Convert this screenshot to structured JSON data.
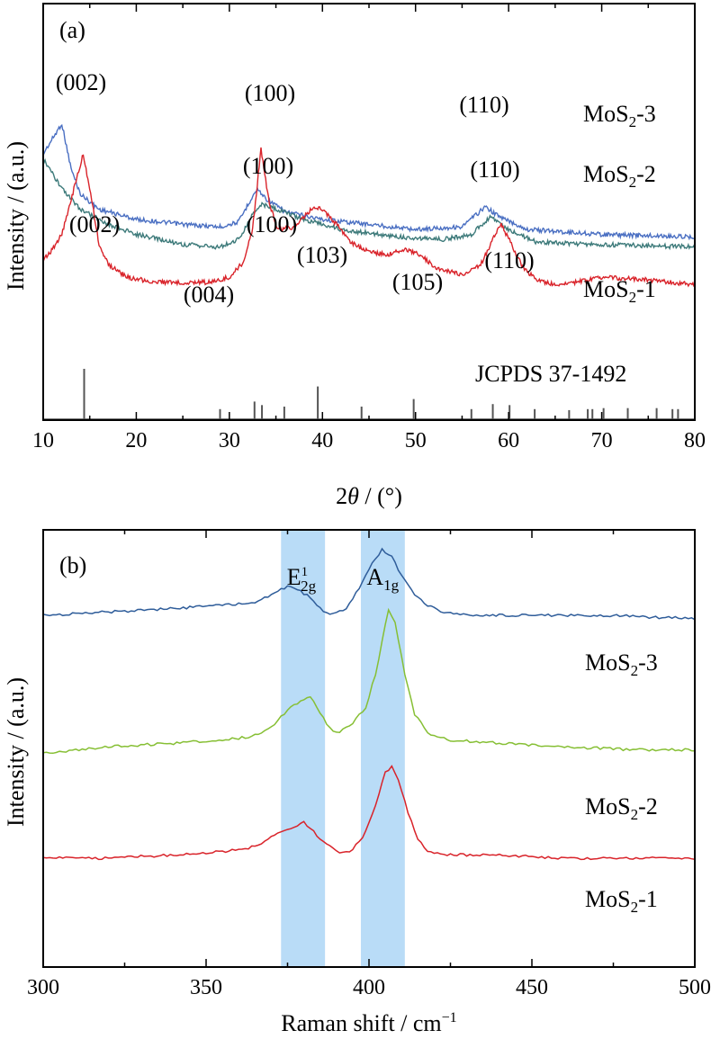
{
  "chart_data": [
    {
      "panel_label": "(a)",
      "type": "line",
      "xlabel_italic": "θ",
      "xlabel_prefix": "2",
      "xlabel_suffix": " / (°)",
      "ylabel": "Intensity / (a.u.)",
      "xlim": [
        10,
        80
      ],
      "xticks": [
        10,
        20,
        30,
        40,
        50,
        60,
        70,
        80
      ],
      "minor_step": 5,
      "y_ticks_shown": false,
      "series": [
        {
          "name": "MoS2-3",
          "name_main": "MoS",
          "name_sub": "2",
          "name_suffix": "-3",
          "color": "#4a6fc2",
          "points": [
            [
              10,
              0.8
            ],
            [
              11,
              0.86
            ],
            [
              12,
              0.92
            ],
            [
              13,
              0.74
            ],
            [
              14,
              0.64
            ],
            [
              16,
              0.58
            ],
            [
              20,
              0.54
            ],
            [
              25,
              0.52
            ],
            [
              29,
              0.51
            ],
            [
              31,
              0.53
            ],
            [
              32.3,
              0.62
            ],
            [
              33,
              0.66
            ],
            [
              34,
              0.62
            ],
            [
              36,
              0.57
            ],
            [
              40,
              0.54
            ],
            [
              45,
              0.52
            ],
            [
              50,
              0.5
            ],
            [
              55,
              0.51
            ],
            [
              57.5,
              0.59
            ],
            [
              59,
              0.55
            ],
            [
              62,
              0.5
            ],
            [
              70,
              0.48
            ],
            [
              80,
              0.47
            ]
          ],
          "peaks": [
            {
              "label": "(002)",
              "x": 12
            },
            {
              "label": "(100)",
              "x": 33
            },
            {
              "label": "(110)",
              "x": 58
            }
          ]
        },
        {
          "name": "MoS2-2",
          "name_main": "MoS",
          "name_sub": "2",
          "name_suffix": "-2",
          "color": "#3d7a7a",
          "points": [
            [
              10,
              0.78
            ],
            [
              11,
              0.72
            ],
            [
              12,
              0.66
            ],
            [
              14,
              0.58
            ],
            [
              17,
              0.52
            ],
            [
              20,
              0.48
            ],
            [
              25,
              0.44
            ],
            [
              29,
              0.43
            ],
            [
              31,
              0.46
            ],
            [
              32.5,
              0.56
            ],
            [
              33.5,
              0.6
            ],
            [
              35,
              0.58
            ],
            [
              38,
              0.54
            ],
            [
              42,
              0.5
            ],
            [
              48,
              0.47
            ],
            [
              53,
              0.46
            ],
            [
              56,
              0.48
            ],
            [
              58,
              0.55
            ],
            [
              60,
              0.5
            ],
            [
              63,
              0.45
            ],
            [
              70,
              0.44
            ],
            [
              80,
              0.43
            ]
          ],
          "peaks": [
            {
              "label": "(100)",
              "x": 33
            },
            {
              "label": "(110)",
              "x": 58
            }
          ]
        },
        {
          "name": "MoS2-1",
          "name_main": "MoS",
          "name_sub": "2",
          "name_suffix": "-1",
          "color": "#d9232a",
          "points": [
            [
              10,
              0.38
            ],
            [
              11,
              0.42
            ],
            [
              12,
              0.48
            ],
            [
              13.3,
              0.66
            ],
            [
              14.3,
              0.8
            ],
            [
              15.2,
              0.62
            ],
            [
              16,
              0.44
            ],
            [
              17,
              0.36
            ],
            [
              19,
              0.31
            ],
            [
              22,
              0.29
            ],
            [
              25,
              0.29
            ],
            [
              28,
              0.29
            ],
            [
              30,
              0.31
            ],
            [
              31.5,
              0.37
            ],
            [
              32.5,
              0.5
            ],
            [
              33.4,
              0.82
            ],
            [
              34.3,
              0.6
            ],
            [
              35.2,
              0.5
            ],
            [
              37,
              0.51
            ],
            [
              39,
              0.59
            ],
            [
              40,
              0.58
            ],
            [
              41.5,
              0.52
            ],
            [
              43,
              0.45
            ],
            [
              45,
              0.41
            ],
            [
              47,
              0.4
            ],
            [
              49,
              0.42
            ],
            [
              50.5,
              0.4
            ],
            [
              52,
              0.35
            ],
            [
              55,
              0.32
            ],
            [
              57,
              0.36
            ],
            [
              58.3,
              0.46
            ],
            [
              59.2,
              0.52
            ],
            [
              60.2,
              0.45
            ],
            [
              61.5,
              0.35
            ],
            [
              63,
              0.3
            ],
            [
              65,
              0.28
            ],
            [
              67,
              0.29
            ],
            [
              70,
              0.31
            ],
            [
              75,
              0.3
            ],
            [
              80,
              0.28
            ]
          ],
          "peaks": [
            {
              "label": "(002)",
              "x": 14
            },
            {
              "label": "(004)",
              "x": 28.7
            },
            {
              "label": "(100)",
              "x": 33
            },
            {
              "label": "(103)",
              "x": 39.5
            },
            {
              "label": "(105)",
              "x": 49
            },
            {
              "label": "(110)",
              "x": 58.5
            }
          ]
        }
      ],
      "reference": {
        "label": "JCPDS 37-1492",
        "color": "#555555",
        "lines": [
          {
            "x": 14.4,
            "h": 1.0
          },
          {
            "x": 29.0,
            "h": 0.2
          },
          {
            "x": 32.7,
            "h": 0.35
          },
          {
            "x": 33.5,
            "h": 0.28
          },
          {
            "x": 35.9,
            "h": 0.25
          },
          {
            "x": 39.5,
            "h": 0.65
          },
          {
            "x": 44.2,
            "h": 0.25
          },
          {
            "x": 49.8,
            "h": 0.4
          },
          {
            "x": 56.0,
            "h": 0.2
          },
          {
            "x": 58.3,
            "h": 0.3
          },
          {
            "x": 60.1,
            "h": 0.28
          },
          {
            "x": 62.8,
            "h": 0.2
          },
          {
            "x": 66.5,
            "h": 0.18
          },
          {
            "x": 68.5,
            "h": 0.2
          },
          {
            "x": 69.0,
            "h": 0.2
          },
          {
            "x": 70.2,
            "h": 0.22
          },
          {
            "x": 72.8,
            "h": 0.22
          },
          {
            "x": 75.9,
            "h": 0.22
          },
          {
            "x": 77.6,
            "h": 0.2
          },
          {
            "x": 78.2,
            "h": 0.2
          }
        ]
      }
    },
    {
      "panel_label": "(b)",
      "type": "line",
      "xlabel": "Raman shift / cm",
      "xlabel_sup": "−1",
      "ylabel": "Intensity / (a.u.)",
      "xlim": [
        300,
        500
      ],
      "xticks": [
        300,
        350,
        400,
        450,
        500
      ],
      "minor_step": 25,
      "y_ticks_shown": false,
      "bands": [
        {
          "x0": 373,
          "x1": 386.5,
          "label_main": "E",
          "label_sub": "2g",
          "label_sup": "1",
          "color": "#b9dcf7"
        },
        {
          "x0": 397.5,
          "x1": 411,
          "label_main": "A",
          "label_sub": "1g",
          "label_sup": "",
          "color": "#b9dcf7"
        }
      ],
      "series": [
        {
          "name": "MoS2-3",
          "name_main": "MoS",
          "name_sub": "2",
          "name_suffix": "-3",
          "color": "#2f5d9a",
          "points": [
            [
              300,
              0.57
            ],
            [
              320,
              0.575
            ],
            [
              340,
              0.58
            ],
            [
              355,
              0.585
            ],
            [
              365,
              0.59
            ],
            [
              370,
              0.6
            ],
            [
              375,
              0.615
            ],
            [
              378,
              0.61
            ],
            [
              381,
              0.6
            ],
            [
              384,
              0.585
            ],
            [
              388,
              0.57
            ],
            [
              393,
              0.58
            ],
            [
              398,
              0.62
            ],
            [
              401,
              0.65
            ],
            [
              404,
              0.67
            ],
            [
              407,
              0.66
            ],
            [
              410,
              0.63
            ],
            [
              414,
              0.6
            ],
            [
              418,
              0.585
            ],
            [
              423,
              0.575
            ],
            [
              430,
              0.57
            ],
            [
              450,
              0.57
            ],
            [
              470,
              0.57
            ],
            [
              500,
              0.565
            ]
          ]
        },
        {
          "name": "MoS2-2",
          "name_main": "MoS",
          "name_sub": "2",
          "name_suffix": "-2",
          "color": "#86bf34",
          "points": [
            [
              300,
              0.36
            ],
            [
              320,
              0.37
            ],
            [
              340,
              0.375
            ],
            [
              355,
              0.38
            ],
            [
              364,
              0.385
            ],
            [
              370,
              0.4
            ],
            [
              375,
              0.425
            ],
            [
              379,
              0.44
            ],
            [
              382,
              0.445
            ],
            [
              384,
              0.43
            ],
            [
              387,
              0.405
            ],
            [
              390,
              0.39
            ],
            [
              394,
              0.4
            ],
            [
              399,
              0.43
            ],
            [
              402,
              0.48
            ],
            [
              404,
              0.53
            ],
            [
              406,
              0.58
            ],
            [
              408,
              0.56
            ],
            [
              411,
              0.48
            ],
            [
              414,
              0.42
            ],
            [
              418,
              0.39
            ],
            [
              425,
              0.38
            ],
            [
              440,
              0.375
            ],
            [
              460,
              0.37
            ],
            [
              480,
              0.365
            ],
            [
              500,
              0.365
            ]
          ]
        },
        {
          "name": "MoS2-1",
          "name_main": "MoS",
          "name_sub": "2",
          "name_suffix": "-1",
          "color": "#d9232a",
          "points": [
            [
              300,
              0.2
            ],
            [
              320,
              0.2
            ],
            [
              340,
              0.205
            ],
            [
              355,
              0.21
            ],
            [
              363,
              0.215
            ],
            [
              368,
              0.225
            ],
            [
              372,
              0.24
            ],
            [
              376,
              0.245
            ],
            [
              380,
              0.255
            ],
            [
              383,
              0.24
            ],
            [
              386,
              0.225
            ],
            [
              390,
              0.21
            ],
            [
              394,
              0.21
            ],
            [
              398,
              0.23
            ],
            [
              402,
              0.28
            ],
            [
              405,
              0.33
            ],
            [
              407,
              0.34
            ],
            [
              409,
              0.32
            ],
            [
              412,
              0.27
            ],
            [
              415,
              0.23
            ],
            [
              418,
              0.21
            ],
            [
              425,
              0.205
            ],
            [
              440,
              0.205
            ],
            [
              460,
              0.2
            ],
            [
              480,
              0.2
            ],
            [
              500,
              0.2
            ]
          ]
        }
      ]
    }
  ]
}
